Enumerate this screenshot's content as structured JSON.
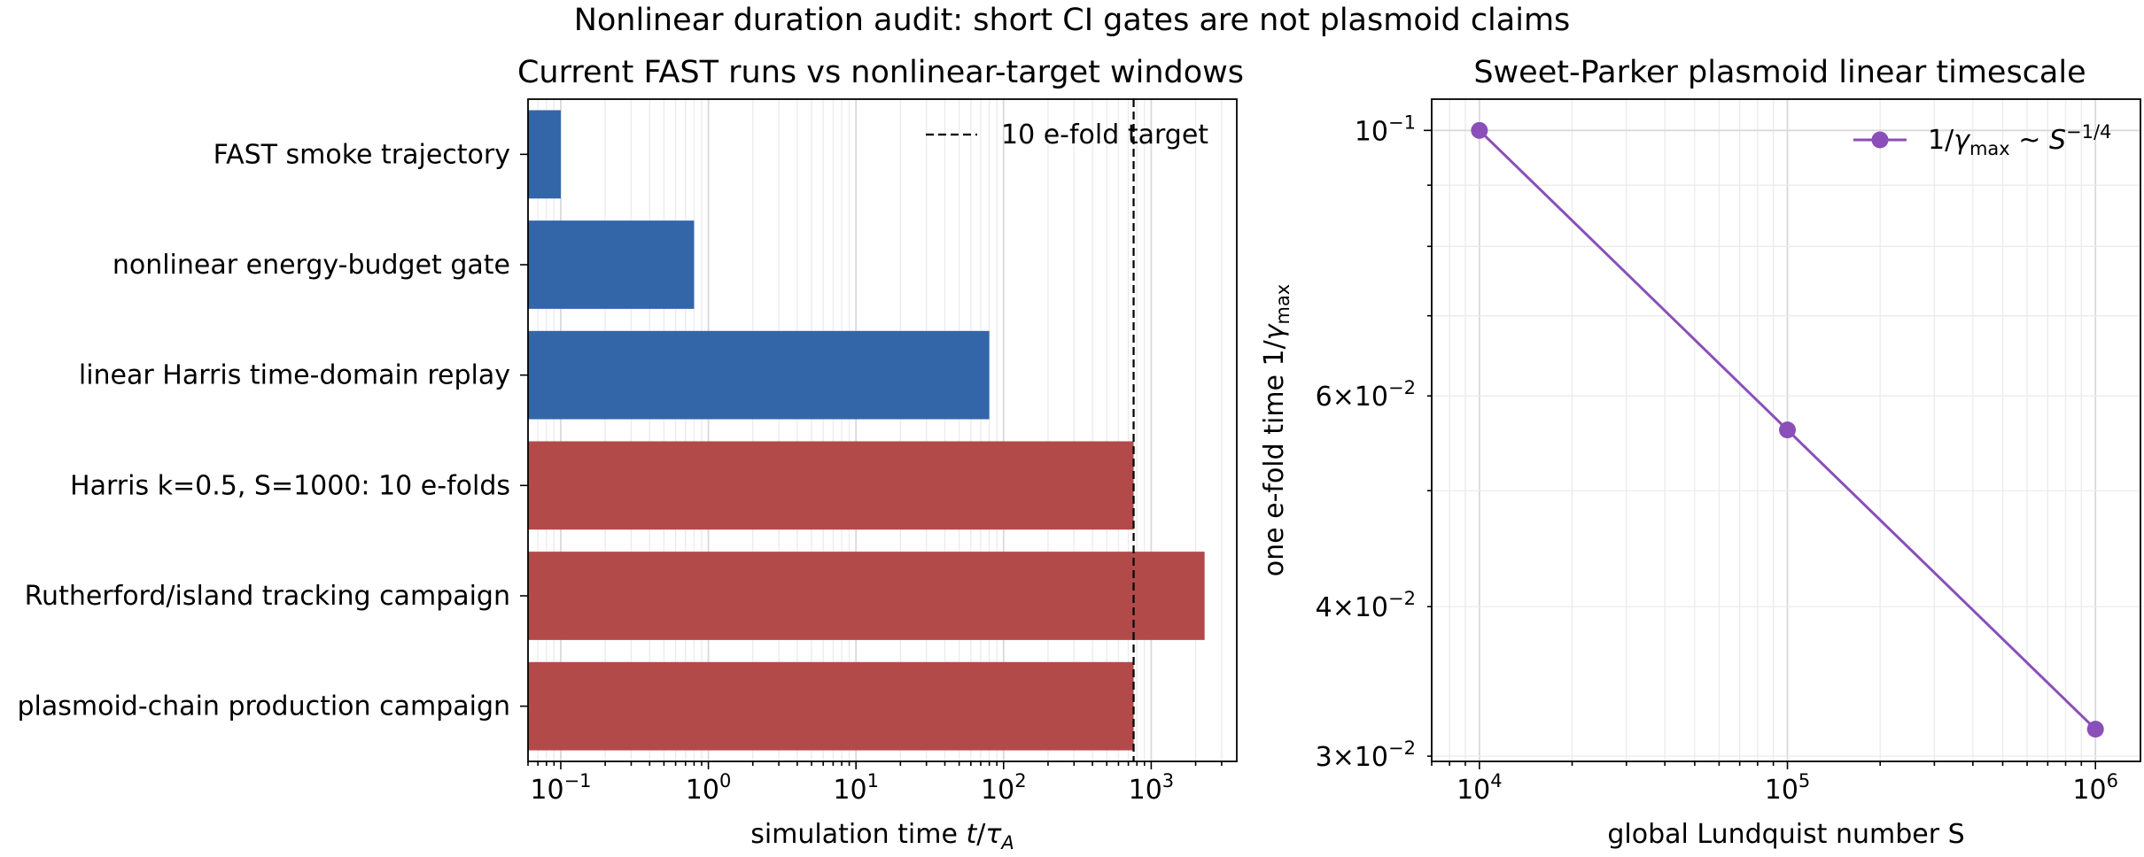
{
  "figure": {
    "suptitle": "Nonlinear duration audit: short CI gates are not plasmoid claims"
  },
  "chart_data": [
    {
      "type": "bar",
      "orientation": "horizontal",
      "title": "Current FAST runs vs nonlinear-target windows",
      "xlabel": "simulation time t/τA",
      "xlabel_parts": {
        "prefix": "simulation time ",
        "var": "t",
        "slash": "/",
        "sym": "τ",
        "sub": "A"
      },
      "ylabel": "",
      "xscale": "log",
      "xlim": [
        0.06,
        3800
      ],
      "x_ticks": [
        {
          "value": 0.1,
          "base": "10",
          "exp": "−1"
        },
        {
          "value": 1,
          "base": "10",
          "exp": "0"
        },
        {
          "value": 10,
          "base": "10",
          "exp": "1"
        },
        {
          "value": 100,
          "base": "10",
          "exp": "2"
        },
        {
          "value": 1000,
          "base": "10",
          "exp": "3"
        }
      ],
      "grid": "x-major-and-minor",
      "categories": [
        "FAST smoke trajectory",
        "nonlinear energy-budget gate",
        "linear Harris time-domain replay",
        "Harris k=0.5, S=1000: 10 e-folds",
        "Rutherford/island tracking campaign",
        "plasmoid-chain production campaign"
      ],
      "values": [
        0.1,
        0.8,
        80,
        760,
        2300,
        760
      ],
      "bar_colors": [
        "#3366a8",
        "#3366a8",
        "#3366a8",
        "#b34a4a",
        "#b34a4a",
        "#b34a4a"
      ],
      "reference_line": {
        "value": 760,
        "label": "10 e-fold target",
        "style": "dashed",
        "color": "#000000"
      },
      "legend": {
        "position": "top-right",
        "entries": [
          "10 e-fold target"
        ]
      }
    },
    {
      "type": "line",
      "title": "Sweet-Parker plasmoid linear timescale",
      "xlabel": "global Lundquist number S",
      "ylabel": "one e-fold time 1/γmax",
      "ylabel_parts": {
        "prefix": "one e-fold time 1/",
        "sym": "γ",
        "sub": "max"
      },
      "xscale": "log",
      "yscale": "log",
      "xlim": [
        7000,
        1400000
      ],
      "ylim": [
        0.0297,
        0.1062
      ],
      "x_ticks": [
        {
          "value": 10000,
          "base": "10",
          "exp": "4"
        },
        {
          "value": 100000,
          "base": "10",
          "exp": "5"
        },
        {
          "value": 1000000,
          "base": "10",
          "exp": "6"
        }
      ],
      "y_ticks": [
        {
          "value": 0.1,
          "mant": "",
          "base": "10",
          "exp": "−1"
        },
        {
          "value": 0.06,
          "mant": "6",
          "base": "10",
          "exp": "−2"
        },
        {
          "value": 0.04,
          "mant": "4",
          "base": "10",
          "exp": "−2"
        },
        {
          "value": 0.03,
          "mant": "3",
          "base": "10",
          "exp": "−2"
        }
      ],
      "grid": "both-major-and-minor",
      "series": [
        {
          "name": "1/γmax ~ S^−1/4",
          "color": "#8a4fb8",
          "marker": "circle",
          "x": [
            10000,
            100000,
            1000000
          ],
          "y": [
            0.1,
            0.0562,
            0.0316
          ]
        }
      ],
      "legend": {
        "position": "top-right",
        "parts": {
          "pre": "1/",
          "sym": "γ",
          "sub": "max",
          "mid": " ~ ",
          "var": "S",
          "sup": "−1/4"
        }
      }
    }
  ]
}
